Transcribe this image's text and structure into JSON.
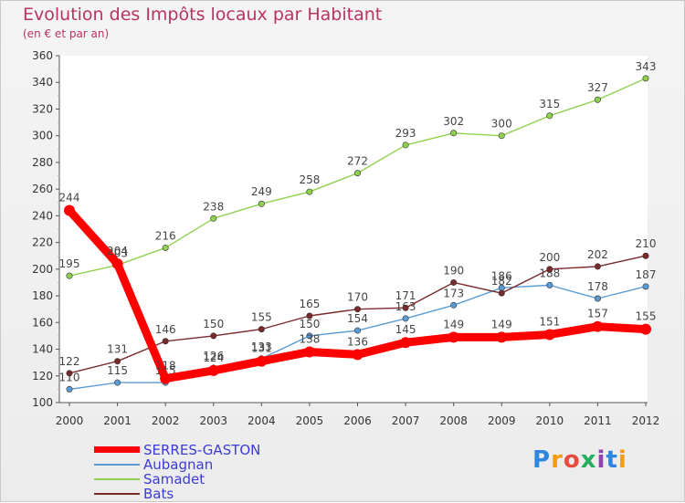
{
  "header": {
    "title": "Evolution des Impôts locaux par Habitant",
    "subtitle": "(en € et par an)"
  },
  "brand": {
    "logo_text": "Proxiti"
  },
  "chart_data": {
    "type": "line",
    "title": "Evolution des Impôts locaux par Habitant",
    "subtitle": "(en € et par an)",
    "xlabel": "",
    "ylabel": "",
    "x": [
      2000,
      2001,
      2002,
      2003,
      2004,
      2005,
      2006,
      2007,
      2008,
      2009,
      2010,
      2011,
      2012
    ],
    "ylim": [
      100,
      360
    ],
    "ytick_step": 20,
    "grid": false,
    "legend_position": "bottom-left",
    "series": [
      {
        "name": "SERRES-GASTON",
        "color": "#ff0000",
        "emphasis": true,
        "values": [
          244,
          204,
          118,
          124,
          131,
          138,
          136,
          145,
          149,
          149,
          151,
          157,
          155
        ]
      },
      {
        "name": "Aubagnan",
        "color": "#5b9bd5",
        "values": [
          110,
          115,
          115,
          126,
          133,
          150,
          154,
          163,
          173,
          186,
          188,
          178,
          187
        ]
      },
      {
        "name": "Samadet",
        "color": "#8fd14f",
        "values": [
          195,
          203,
          216,
          238,
          249,
          258,
          272,
          293,
          302,
          300,
          315,
          327,
          343
        ]
      },
      {
        "name": "Bats",
        "color": "#7a2a2a",
        "values": [
          122,
          131,
          146,
          150,
          155,
          165,
          170,
          171,
          190,
          182,
          200,
          202,
          210
        ]
      }
    ]
  }
}
